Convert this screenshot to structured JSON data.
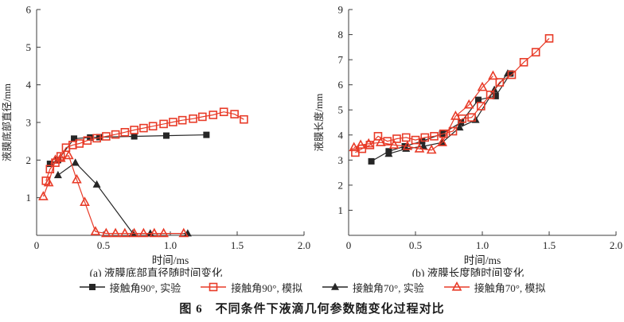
{
  "figure": {
    "caption": "图 6　不同条件下液滴几何参数随变化过程对比"
  },
  "colors": {
    "experiment_black": "#262626",
    "simulation_red": "#e83b28",
    "axis": "#3c3c3c"
  },
  "legend": {
    "items": [
      {
        "label": "接触角90°, 实验",
        "marker": "square-filled",
        "color": "#262626"
      },
      {
        "label": "接触角90°, 模拟",
        "marker": "square-open",
        "color": "#e83b28"
      },
      {
        "label": "接触角70°, 实验",
        "marker": "triangle-filled",
        "color": "#262626"
      },
      {
        "label": "接触角70°, 模拟",
        "marker": "triangle-open",
        "color": "#e83b28"
      }
    ]
  },
  "chart_data": [
    {
      "type": "line",
      "name": "chart-a-diameter",
      "title": "(a) 液膜底部直径随时间变化",
      "xlabel": "时间/ms",
      "ylabel": "液膜底部直径/mm",
      "xlim": [
        0,
        2.0
      ],
      "ylim": [
        0,
        6
      ],
      "xticks": [
        0,
        0.5,
        1.0,
        1.5,
        2.0
      ],
      "xtick_labels": [
        "0",
        "0.5",
        "1.0",
        "1.5",
        "2.0"
      ],
      "yticks": [
        1,
        2,
        3,
        4,
        5,
        6
      ],
      "grid": false,
      "series": [
        {
          "name": "exp-90",
          "label": "接触角90°, 实验",
          "marker": "square-filled",
          "color": "#262626",
          "x": [
            0.1,
            0.16,
            0.28,
            0.4,
            0.47,
            0.73,
            0.97,
            1.27
          ],
          "y": [
            1.9,
            2.0,
            2.57,
            2.6,
            2.61,
            2.63,
            2.65,
            2.67
          ]
        },
        {
          "name": "exp-70",
          "label": "接触角70°, 实验",
          "marker": "triangle-filled",
          "color": "#262626",
          "x": [
            0.16,
            0.29,
            0.45,
            0.72,
            0.85,
            1.13
          ],
          "y": [
            1.6,
            1.93,
            1.35,
            0.05,
            0.05,
            0.05
          ]
        },
        {
          "name": "sim-90",
          "label": "接触角90°, 模拟",
          "marker": "square-open",
          "color": "#e83b28",
          "x": [
            0.07,
            0.1,
            0.14,
            0.18,
            0.22,
            0.27,
            0.32,
            0.38,
            0.45,
            0.52,
            0.59,
            0.66,
            0.73,
            0.8,
            0.87,
            0.95,
            1.02,
            1.09,
            1.17,
            1.24,
            1.32,
            1.4,
            1.48,
            1.55
          ],
          "y": [
            1.45,
            1.76,
            1.93,
            2.1,
            2.33,
            2.4,
            2.44,
            2.52,
            2.58,
            2.63,
            2.68,
            2.74,
            2.8,
            2.85,
            2.9,
            2.96,
            3.01,
            3.06,
            3.1,
            3.15,
            3.2,
            3.28,
            3.22,
            3.08
          ]
        },
        {
          "name": "sim-70",
          "label": "接触角70°, 模拟",
          "marker": "triangle-open",
          "color": "#e83b28",
          "x": [
            0.05,
            0.09,
            0.14,
            0.18,
            0.24,
            0.3,
            0.36,
            0.44,
            0.52,
            0.59,
            0.66,
            0.73,
            0.8,
            0.88,
            0.95,
            1.1
          ],
          "y": [
            1.03,
            1.4,
            2.0,
            2.05,
            2.12,
            1.48,
            0.88,
            0.1,
            0.05,
            0.05,
            0.05,
            0.05,
            0.05,
            0.05,
            0.05,
            0.05
          ]
        }
      ]
    },
    {
      "type": "line",
      "name": "chart-b-length",
      "title": "(b) 液膜长度随时间变化",
      "xlabel": "时间/ms",
      "ylabel": "液膜长度/mm",
      "xlim": [
        0,
        2.0
      ],
      "ylim": [
        0,
        9
      ],
      "xticks": [
        0,
        0.5,
        1.0,
        1.5,
        2.0
      ],
      "xtick_labels": [
        "0",
        "0.5",
        "1.0",
        "1.5",
        "2.0"
      ],
      "yticks": [
        1,
        2,
        3,
        4,
        5,
        6,
        7,
        8,
        9
      ],
      "grid": false,
      "series": [
        {
          "name": "exp-90",
          "label": "接触角90°, 实验",
          "marker": "square-filled",
          "color": "#262626",
          "x": [
            0.17,
            0.3,
            0.42,
            0.55,
            0.7,
            0.84,
            0.97,
            1.1,
            1.21
          ],
          "y": [
            2.95,
            3.35,
            3.55,
            3.75,
            4.05,
            4.5,
            5.4,
            5.55,
            6.45
          ]
        },
        {
          "name": "exp-70",
          "label": "接触角70°, 实验",
          "marker": "triangle-filled",
          "color": "#262626",
          "x": [
            0.3,
            0.43,
            0.56,
            0.7,
            0.83,
            0.95,
            1.09,
            1.19
          ],
          "y": [
            3.25,
            3.45,
            3.55,
            3.7,
            4.3,
            4.6,
            5.8,
            6.45
          ]
        },
        {
          "name": "sim-90",
          "label": "接触角90°, 模拟",
          "marker": "square-open",
          "color": "#e83b28",
          "x": [
            0.05,
            0.1,
            0.16,
            0.22,
            0.29,
            0.36,
            0.43,
            0.5,
            0.57,
            0.64,
            0.71,
            0.78,
            0.85,
            0.92,
            0.99,
            1.06,
            1.13,
            1.22,
            1.31,
            1.4,
            1.5
          ],
          "y": [
            3.3,
            3.45,
            3.6,
            3.95,
            3.75,
            3.85,
            3.9,
            3.8,
            3.9,
            3.95,
            4.05,
            4.15,
            4.65,
            4.7,
            5.15,
            5.6,
            6.1,
            6.4,
            6.9,
            7.3,
            7.85
          ]
        },
        {
          "name": "sim-70",
          "label": "接触角70°, 模拟",
          "marker": "triangle-open",
          "color": "#e83b28",
          "x": [
            0.04,
            0.09,
            0.15,
            0.24,
            0.34,
            0.44,
            0.53,
            0.62,
            0.7,
            0.8,
            0.9,
            1.0,
            1.08
          ],
          "y": [
            3.5,
            3.6,
            3.65,
            3.7,
            3.6,
            3.55,
            3.45,
            3.4,
            3.7,
            4.75,
            5.2,
            5.9,
            6.35
          ]
        }
      ]
    }
  ]
}
